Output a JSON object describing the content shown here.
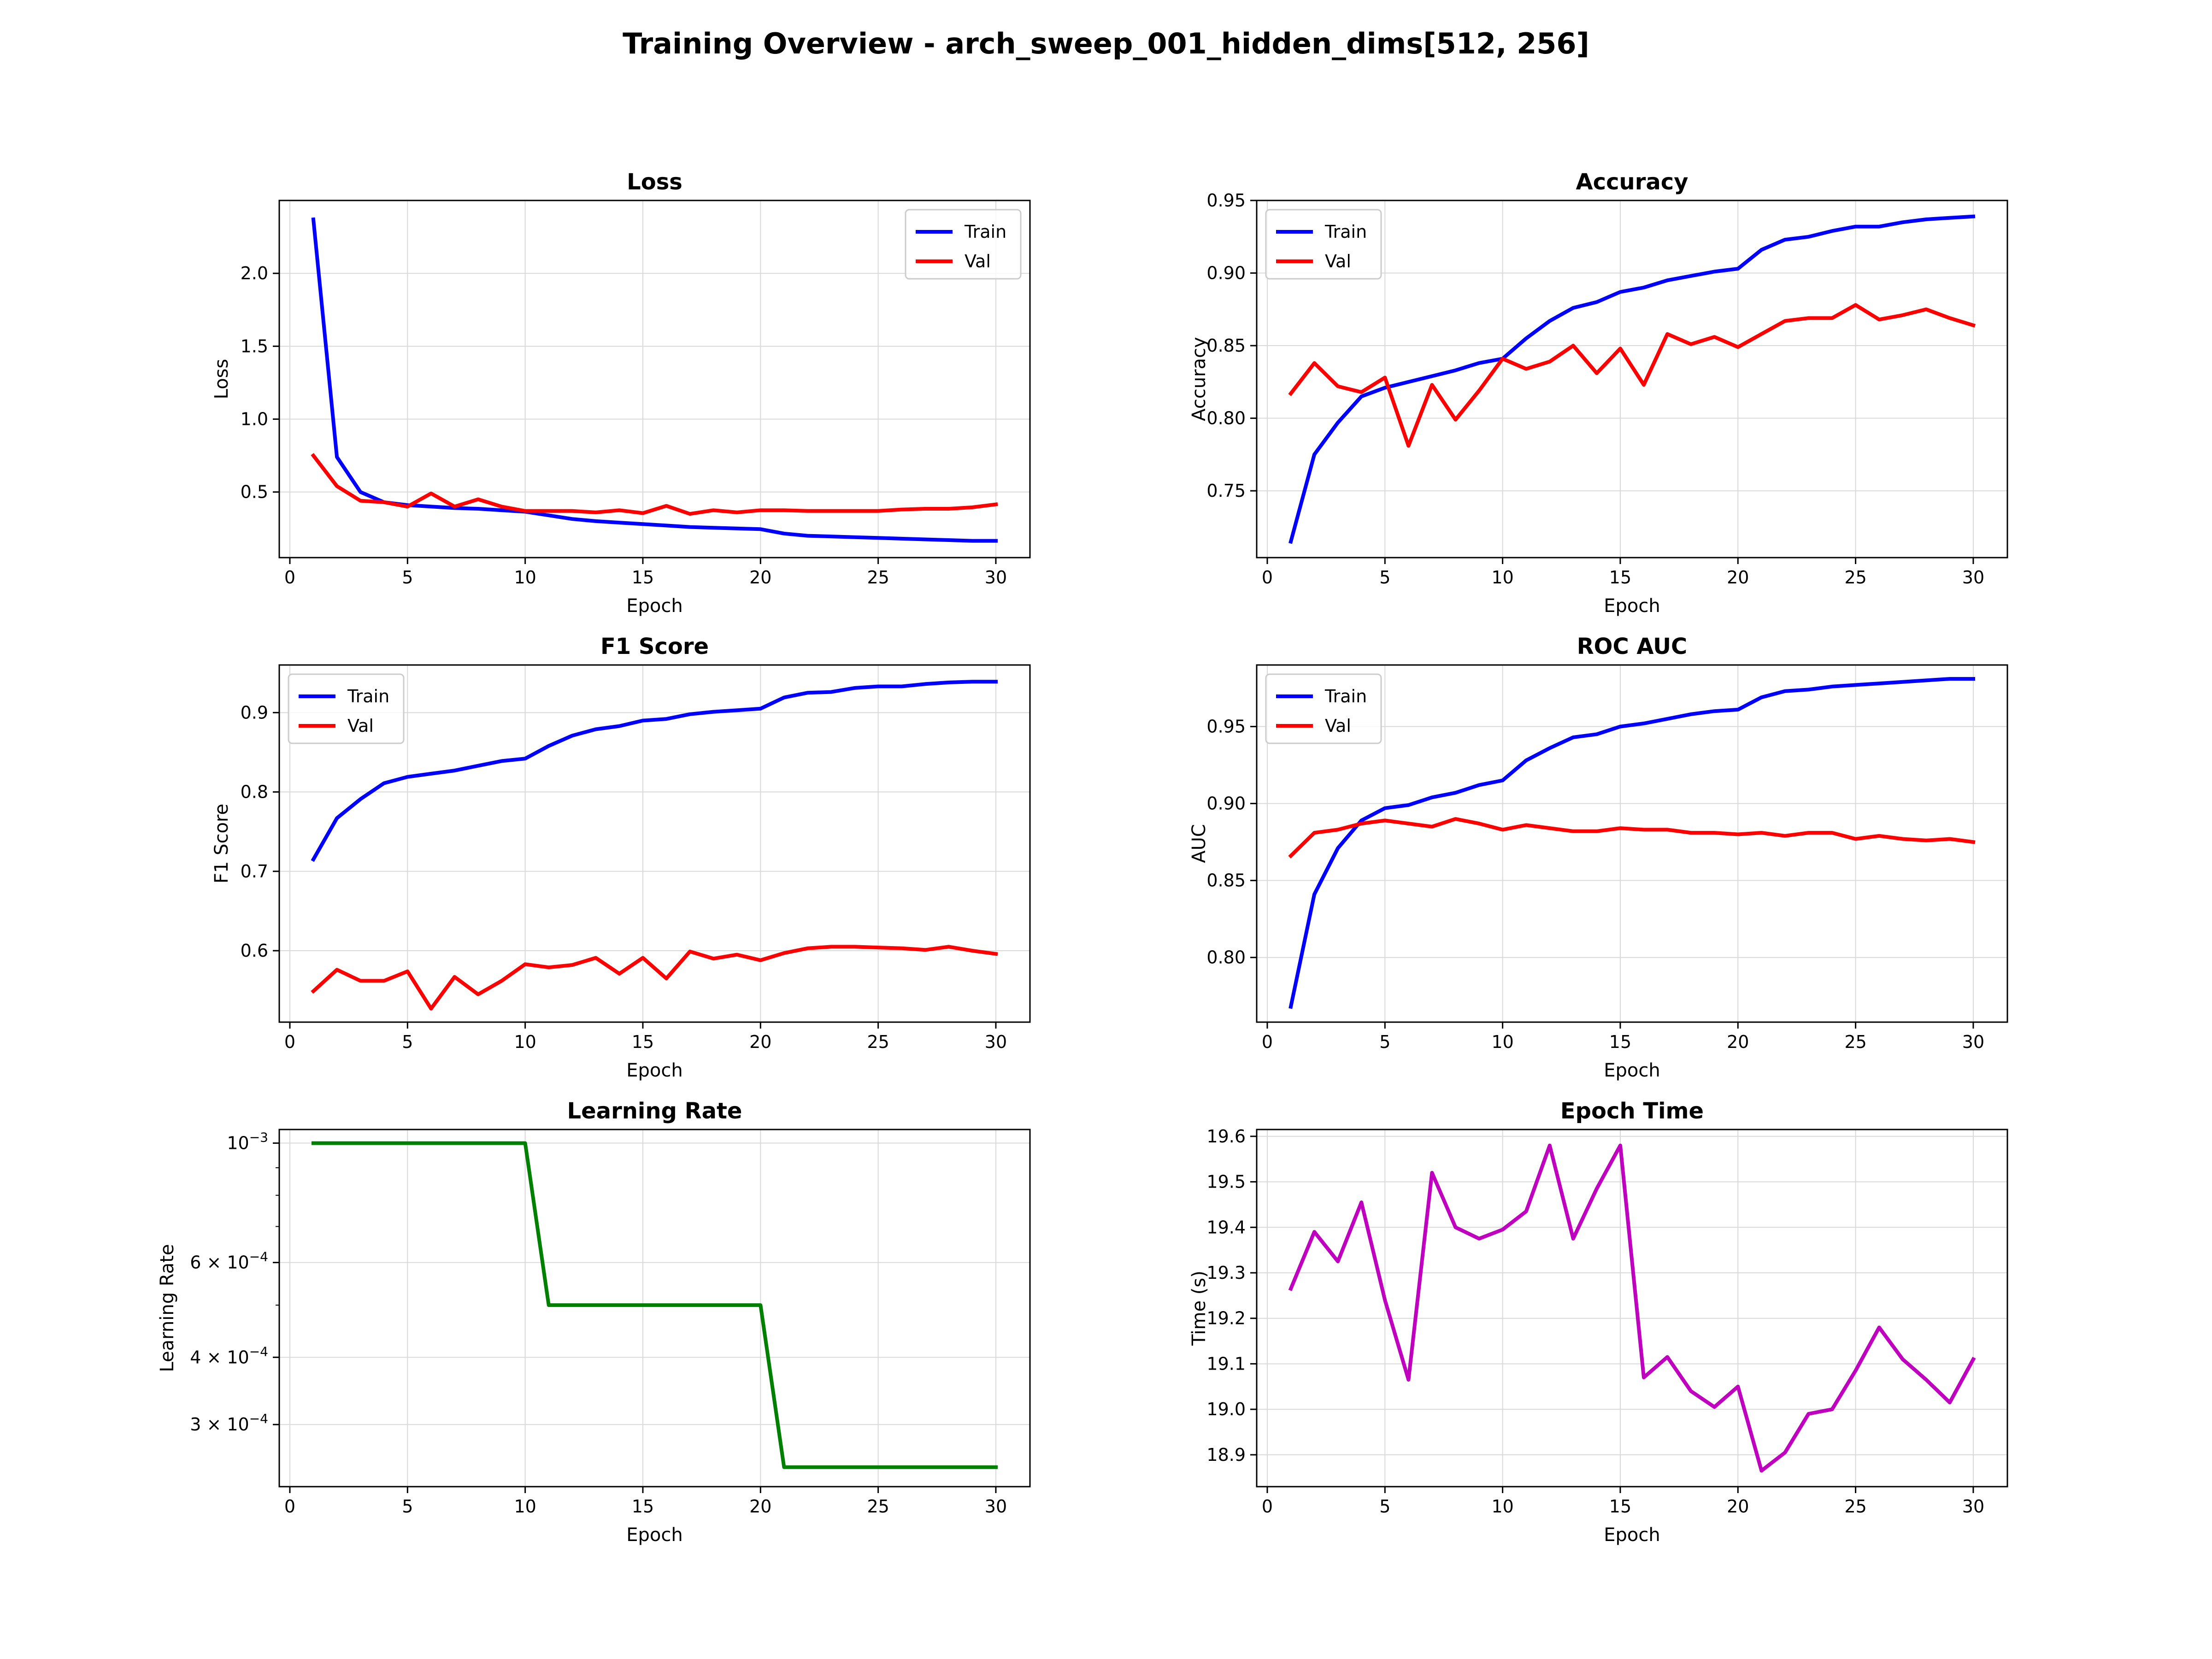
{
  "figure": {
    "title": "Training Overview - arch_sweep_001_hidden_dims[512, 256]"
  },
  "chart_data": [
    {
      "id": "loss",
      "type": "line",
      "title": "Loss",
      "xlabel": "Epoch",
      "ylabel": "Loss",
      "xlim": [
        -0.45,
        31.45
      ],
      "ylim": [
        0.05,
        2.5
      ],
      "xticks": [
        0,
        5,
        10,
        15,
        20,
        25,
        30
      ],
      "yticks": [
        0.5,
        1.0,
        1.5,
        2.0
      ],
      "ytick_labels": [
        "0.5",
        "1.0",
        "1.5",
        "2.0"
      ],
      "grid": true,
      "legend": "upper right",
      "x": [
        1,
        2,
        3,
        4,
        5,
        6,
        7,
        8,
        9,
        10,
        11,
        12,
        13,
        14,
        15,
        16,
        17,
        18,
        19,
        20,
        21,
        22,
        23,
        24,
        25,
        26,
        27,
        28,
        29,
        30
      ],
      "series": [
        {
          "name": "Train",
          "color": "#0000ff",
          "values": [
            2.37,
            0.74,
            0.5,
            0.43,
            0.41,
            0.4,
            0.39,
            0.385,
            0.375,
            0.365,
            0.34,
            0.315,
            0.3,
            0.29,
            0.28,
            0.27,
            0.26,
            0.255,
            0.25,
            0.245,
            0.215,
            0.2,
            0.195,
            0.19,
            0.185,
            0.18,
            0.175,
            0.17,
            0.165,
            0.165
          ]
        },
        {
          "name": "Val",
          "color": "#ff0000",
          "values": [
            0.75,
            0.54,
            0.44,
            0.43,
            0.4,
            0.49,
            0.4,
            0.45,
            0.4,
            0.37,
            0.37,
            0.37,
            0.36,
            0.375,
            0.355,
            0.405,
            0.35,
            0.375,
            0.36,
            0.375,
            0.375,
            0.37,
            0.37,
            0.37,
            0.37,
            0.38,
            0.385,
            0.385,
            0.395,
            0.415
          ]
        }
      ]
    },
    {
      "id": "accuracy",
      "type": "line",
      "title": "Accuracy",
      "xlabel": "Epoch",
      "ylabel": "Accuracy",
      "xlim": [
        -0.45,
        31.45
      ],
      "ylim": [
        0.704,
        0.95
      ],
      "xticks": [
        0,
        5,
        10,
        15,
        20,
        25,
        30
      ],
      "yticks": [
        0.75,
        0.8,
        0.85,
        0.9,
        0.95
      ],
      "ytick_labels": [
        "0.75",
        "0.80",
        "0.85",
        "0.90",
        "0.95"
      ],
      "grid": true,
      "legend": "upper left",
      "x": [
        1,
        2,
        3,
        4,
        5,
        6,
        7,
        8,
        9,
        10,
        11,
        12,
        13,
        14,
        15,
        16,
        17,
        18,
        19,
        20,
        21,
        22,
        23,
        24,
        25,
        26,
        27,
        28,
        29,
        30
      ],
      "series": [
        {
          "name": "Train",
          "color": "#0000ff",
          "values": [
            0.715,
            0.775,
            0.797,
            0.815,
            0.821,
            0.825,
            0.829,
            0.833,
            0.838,
            0.841,
            0.855,
            0.867,
            0.876,
            0.88,
            0.887,
            0.89,
            0.895,
            0.898,
            0.901,
            0.903,
            0.916,
            0.923,
            0.925,
            0.929,
            0.932,
            0.932,
            0.935,
            0.937,
            0.938,
            0.939
          ]
        },
        {
          "name": "Val",
          "color": "#ff0000",
          "values": [
            0.817,
            0.838,
            0.822,
            0.818,
            0.828,
            0.781,
            0.823,
            0.799,
            0.819,
            0.841,
            0.834,
            0.839,
            0.85,
            0.831,
            0.848,
            0.823,
            0.858,
            0.851,
            0.856,
            0.849,
            0.858,
            0.867,
            0.869,
            0.869,
            0.878,
            0.868,
            0.871,
            0.875,
            0.869,
            0.864
          ]
        }
      ]
    },
    {
      "id": "f1",
      "type": "line",
      "title": "F1 Score",
      "xlabel": "Epoch",
      "ylabel": "F1 Score",
      "xlim": [
        -0.45,
        31.45
      ],
      "ylim": [
        0.51,
        0.96
      ],
      "xticks": [
        0,
        5,
        10,
        15,
        20,
        25,
        30
      ],
      "yticks": [
        0.6,
        0.7,
        0.8,
        0.9
      ],
      "ytick_labels": [
        "0.6",
        "0.7",
        "0.8",
        "0.9"
      ],
      "grid": true,
      "legend": "upper left",
      "x": [
        1,
        2,
        3,
        4,
        5,
        6,
        7,
        8,
        9,
        10,
        11,
        12,
        13,
        14,
        15,
        16,
        17,
        18,
        19,
        20,
        21,
        22,
        23,
        24,
        25,
        26,
        27,
        28,
        29,
        30
      ],
      "series": [
        {
          "name": "Train",
          "color": "#0000ff",
          "values": [
            0.715,
            0.767,
            0.791,
            0.811,
            0.819,
            0.823,
            0.827,
            0.833,
            0.839,
            0.842,
            0.858,
            0.871,
            0.879,
            0.883,
            0.89,
            0.892,
            0.898,
            0.901,
            0.903,
            0.905,
            0.919,
            0.925,
            0.926,
            0.931,
            0.933,
            0.933,
            0.936,
            0.938,
            0.939,
            0.939
          ]
        },
        {
          "name": "Val",
          "color": "#ff0000",
          "values": [
            0.549,
            0.576,
            0.562,
            0.562,
            0.574,
            0.527,
            0.567,
            0.545,
            0.562,
            0.583,
            0.579,
            0.582,
            0.591,
            0.571,
            0.591,
            0.565,
            0.599,
            0.59,
            0.595,
            0.588,
            0.597,
            0.603,
            0.605,
            0.605,
            0.604,
            0.603,
            0.601,
            0.605,
            0.6,
            0.596
          ]
        }
      ]
    },
    {
      "id": "auc",
      "type": "line",
      "title": "ROC AUC",
      "xlabel": "Epoch",
      "ylabel": "AUC",
      "xlim": [
        -0.45,
        31.45
      ],
      "ylim": [
        0.758,
        0.99
      ],
      "xticks": [
        0,
        5,
        10,
        15,
        20,
        25,
        30
      ],
      "yticks": [
        0.8,
        0.85,
        0.9,
        0.95
      ],
      "ytick_labels": [
        "0.80",
        "0.85",
        "0.90",
        "0.95"
      ],
      "grid": true,
      "legend": "upper left",
      "x": [
        1,
        2,
        3,
        4,
        5,
        6,
        7,
        8,
        9,
        10,
        11,
        12,
        13,
        14,
        15,
        16,
        17,
        18,
        19,
        20,
        21,
        22,
        23,
        24,
        25,
        26,
        27,
        28,
        29,
        30
      ],
      "series": [
        {
          "name": "Train",
          "color": "#0000ff",
          "values": [
            0.768,
            0.841,
            0.871,
            0.889,
            0.897,
            0.899,
            0.904,
            0.907,
            0.912,
            0.915,
            0.928,
            0.936,
            0.943,
            0.945,
            0.95,
            0.952,
            0.955,
            0.958,
            0.96,
            0.961,
            0.969,
            0.973,
            0.974,
            0.976,
            0.977,
            0.978,
            0.979,
            0.98,
            0.981,
            0.981
          ]
        },
        {
          "name": "Val",
          "color": "#ff0000",
          "values": [
            0.866,
            0.881,
            0.883,
            0.887,
            0.889,
            0.887,
            0.885,
            0.89,
            0.887,
            0.883,
            0.886,
            0.884,
            0.882,
            0.882,
            0.884,
            0.883,
            0.883,
            0.881,
            0.881,
            0.88,
            0.881,
            0.879,
            0.881,
            0.881,
            0.877,
            0.879,
            0.877,
            0.876,
            0.877,
            0.875
          ]
        }
      ]
    },
    {
      "id": "lr",
      "type": "line",
      "title": "Learning Rate",
      "xlabel": "Epoch",
      "ylabel": "Learning Rate",
      "yscale": "log",
      "xlim": [
        -0.45,
        31.45
      ],
      "ylim": [
        0.00023,
        0.00106
      ],
      "xticks": [
        0,
        5,
        10,
        15,
        20,
        25,
        30
      ],
      "yticks": [
        0.0003,
        0.0004,
        0.0006,
        0.001
      ],
      "ytick_labels": [
        {
          "mant": "3 × 10",
          "exp": "−4"
        },
        {
          "mant": "4 × 10",
          "exp": "−4"
        },
        {
          "mant": "6 × 10",
          "exp": "−4"
        },
        {
          "mant": "10",
          "exp": "−3"
        }
      ],
      "minor_yticks": [
        0.0005,
        0.0007,
        0.0008,
        0.0009
      ],
      "grid": true,
      "legend": "none",
      "x": [
        1,
        2,
        3,
        4,
        5,
        6,
        7,
        8,
        9,
        10,
        11,
        12,
        13,
        14,
        15,
        16,
        17,
        18,
        19,
        20,
        21,
        22,
        23,
        24,
        25,
        26,
        27,
        28,
        29,
        30
      ],
      "series": [
        {
          "color": "#008000",
          "values": [
            0.001,
            0.001,
            0.001,
            0.001,
            0.001,
            0.001,
            0.001,
            0.001,
            0.001,
            0.001,
            0.0005,
            0.0005,
            0.0005,
            0.0005,
            0.0005,
            0.0005,
            0.0005,
            0.0005,
            0.0005,
            0.0005,
            0.00025,
            0.00025,
            0.00025,
            0.00025,
            0.00025,
            0.00025,
            0.00025,
            0.00025,
            0.00025,
            0.00025
          ]
        }
      ]
    },
    {
      "id": "time",
      "type": "line",
      "title": "Epoch Time",
      "xlabel": "Epoch",
      "ylabel": "Time (s)",
      "xlim": [
        -0.45,
        31.45
      ],
      "ylim": [
        18.83,
        19.615
      ],
      "xticks": [
        0,
        5,
        10,
        15,
        20,
        25,
        30
      ],
      "yticks": [
        18.9,
        19.0,
        19.1,
        19.2,
        19.3,
        19.4,
        19.5,
        19.6
      ],
      "ytick_labels": [
        "18.9",
        "19.0",
        "19.1",
        "19.2",
        "19.3",
        "19.4",
        "19.5",
        "19.6"
      ],
      "grid": true,
      "legend": "none",
      "x": [
        1,
        2,
        3,
        4,
        5,
        6,
        7,
        8,
        9,
        10,
        11,
        12,
        13,
        14,
        15,
        16,
        17,
        18,
        19,
        20,
        21,
        22,
        23,
        24,
        25,
        26,
        27,
        28,
        29,
        30
      ],
      "series": [
        {
          "color": "#bf00bf",
          "values": [
            19.265,
            19.39,
            19.325,
            19.455,
            19.24,
            19.065,
            19.52,
            19.4,
            19.375,
            19.395,
            19.435,
            19.58,
            19.375,
            19.485,
            19.58,
            19.07,
            19.115,
            19.04,
            19.005,
            19.05,
            18.865,
            18.905,
            18.99,
            19.0,
            19.085,
            19.18,
            19.11,
            19.065,
            19.015,
            19.11
          ]
        }
      ]
    }
  ]
}
